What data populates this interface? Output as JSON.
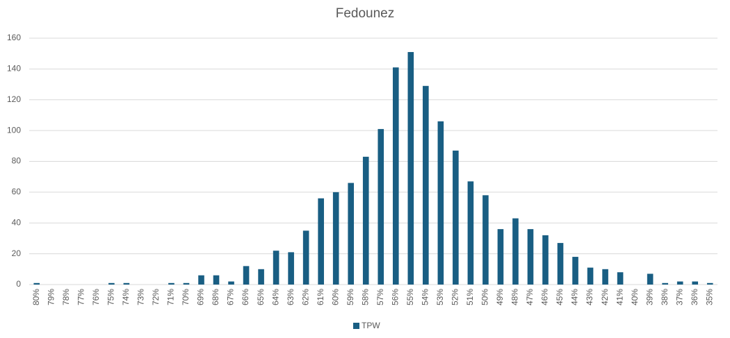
{
  "chart_data": {
    "type": "bar",
    "title": "Fedounez",
    "categories": [
      "80%",
      "79%",
      "78%",
      "77%",
      "76%",
      "75%",
      "74%",
      "73%",
      "72%",
      "71%",
      "70%",
      "69%",
      "68%",
      "67%",
      "66%",
      "65%",
      "64%",
      "63%",
      "62%",
      "61%",
      "60%",
      "59%",
      "58%",
      "57%",
      "56%",
      "55%",
      "54%",
      "53%",
      "52%",
      "51%",
      "50%",
      "49%",
      "48%",
      "47%",
      "46%",
      "45%",
      "44%",
      "43%",
      "42%",
      "41%",
      "40%",
      "39%",
      "38%",
      "37%",
      "36%",
      "35%"
    ],
    "series": [
      {
        "name": "TPW",
        "color": "#195e83",
        "values": [
          1,
          0,
          0,
          0,
          0,
          1,
          1,
          0,
          0,
          1,
          1,
          6,
          6,
          2,
          12,
          10,
          22,
          21,
          35,
          56,
          60,
          66,
          83,
          101,
          141,
          151,
          129,
          106,
          87,
          67,
          58,
          36,
          43,
          36,
          32,
          27,
          18,
          11,
          10,
          8,
          0,
          7,
          1,
          2,
          2,
          1
        ]
      }
    ],
    "ylim": [
      0,
      160
    ],
    "yticks": [
      0,
      20,
      40,
      60,
      80,
      100,
      120,
      140,
      160
    ],
    "grid": true,
    "legend": "bottom"
  }
}
